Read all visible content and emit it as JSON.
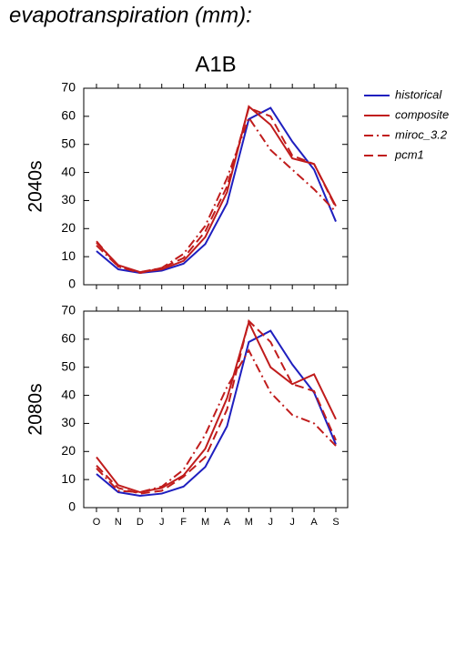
{
  "title": "evapotranspiration (mm):",
  "scenario": "A1B",
  "chart_data": [
    {
      "type": "line",
      "ylabel": "2040s",
      "ylim": [
        0,
        70
      ],
      "yticks": [
        0,
        10,
        20,
        30,
        40,
        50,
        60,
        70
      ],
      "series": [
        {
          "name": "historical",
          "color": "#1f1fbf",
          "dash": "solid",
          "values": [
            12,
            5.5,
            4.2,
            5,
            7.5,
            14.5,
            29,
            59,
            63,
            51,
            41,
            22.5
          ]
        },
        {
          "name": "composite",
          "color": "#c01c1c",
          "dash": "solid",
          "values": [
            15,
            7,
            4.5,
            5.5,
            8.5,
            17,
            33,
            63.5,
            57,
            45,
            43,
            28
          ]
        },
        {
          "name": "miroc_3.2",
          "color": "#c01c1c",
          "dash": "dashdot",
          "values": [
            14,
            6.5,
            4.5,
            6,
            11,
            21,
            38,
            59.5,
            48,
            41,
            34,
            26
          ]
        },
        {
          "name": "pcm1",
          "color": "#c01c1c",
          "dash": "dash",
          "values": [
            15.5,
            6.5,
            4.2,
            6,
            9.5,
            19,
            35,
            63,
            60,
            46,
            43,
            27.5
          ]
        }
      ]
    },
    {
      "type": "line",
      "ylabel": "2080s",
      "ylim": [
        0,
        70
      ],
      "yticks": [
        0,
        10,
        20,
        30,
        40,
        50,
        60,
        70
      ],
      "categories": [
        "O",
        "N",
        "D",
        "J",
        "F",
        "M",
        "A",
        "M",
        "J",
        "J",
        "A",
        "S"
      ],
      "series": [
        {
          "color": "#1f1fbf",
          "dash": "solid",
          "values": [
            12,
            5.5,
            4.2,
            5,
            7.5,
            14.5,
            29,
            59,
            63,
            51,
            41,
            22.5
          ]
        },
        {
          "color": "#c01c1c",
          "dash": "solid",
          "values": [
            18,
            8,
            5.5,
            7,
            11.5,
            21,
            39,
            66,
            50,
            44,
            47.5,
            31.5
          ]
        },
        {
          "color": "#c01c1c",
          "dash": "dashdot",
          "values": [
            14,
            6,
            5.5,
            7.5,
            13.5,
            26,
            43,
            56,
            41,
            33,
            30,
            22
          ]
        },
        {
          "color": "#c01c1c",
          "dash": "dash",
          "values": [
            15,
            7,
            5,
            6,
            11,
            18,
            35,
            66.5,
            59,
            44,
            41.5,
            24
          ]
        }
      ]
    }
  ]
}
